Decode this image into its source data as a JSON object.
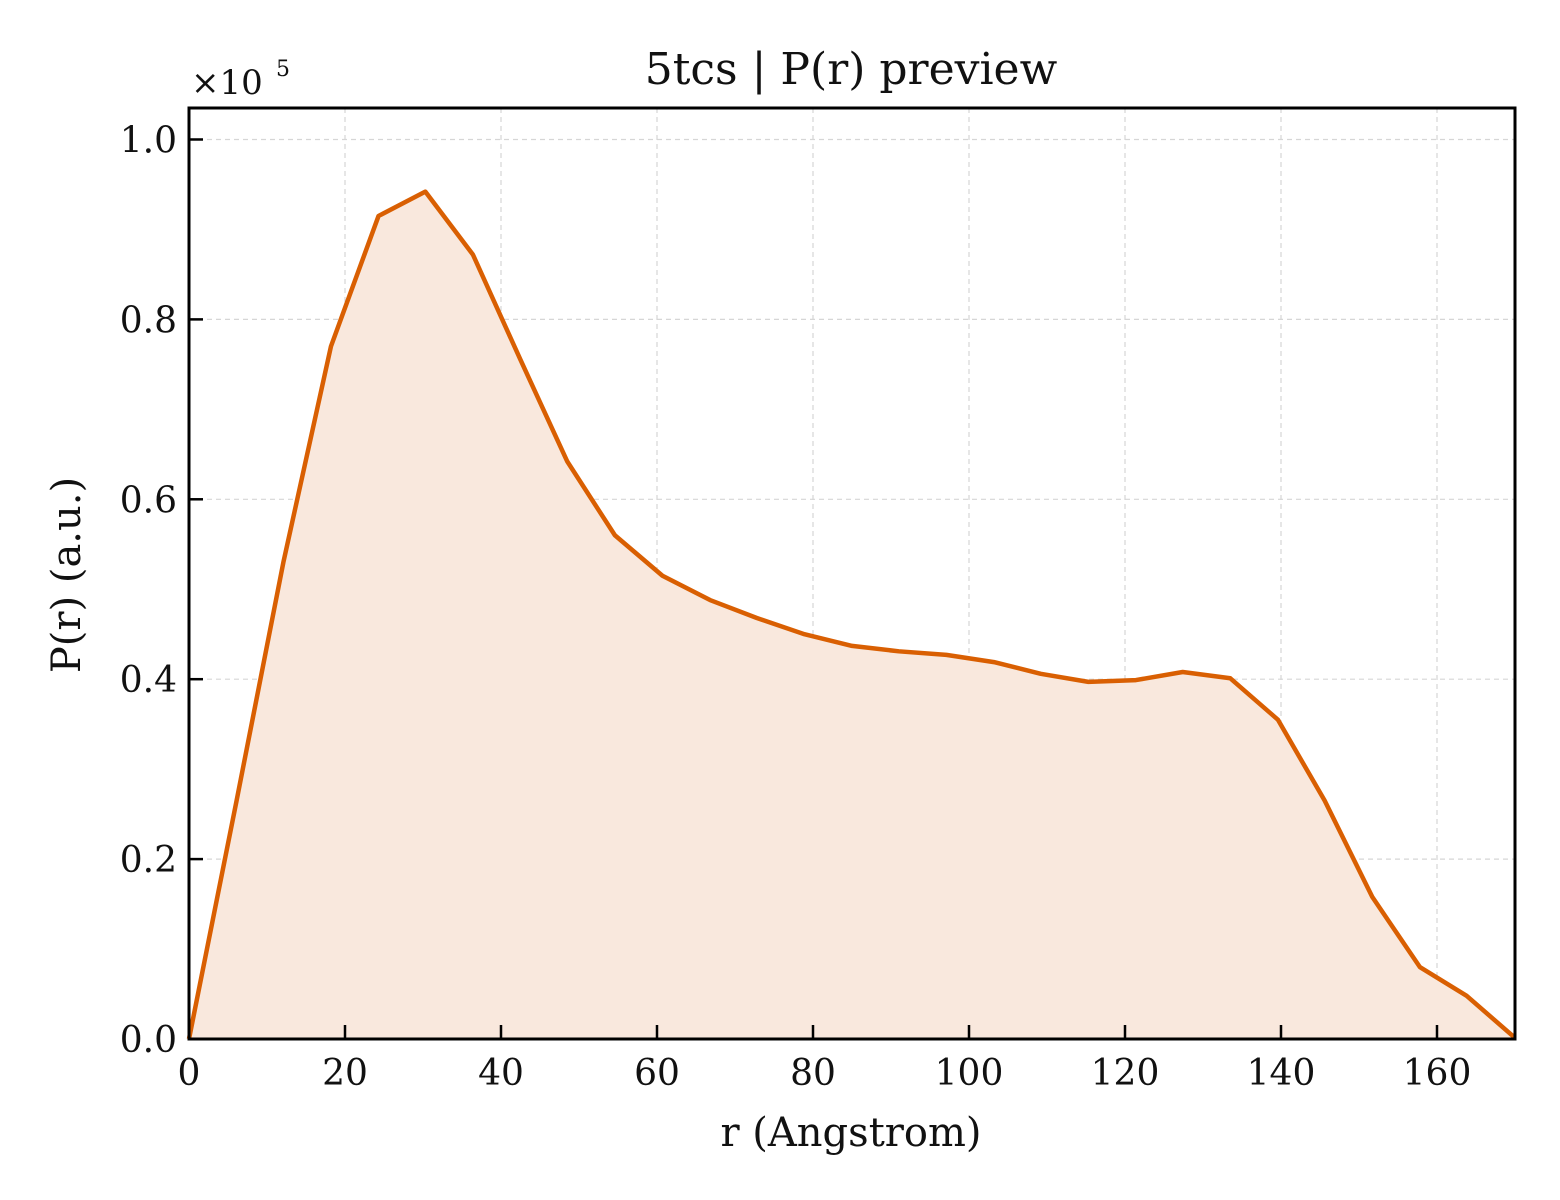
{
  "chart_data": {
    "type": "area",
    "title": "5tcs | P(r) preview",
    "xlabel": "r (Angstrom)",
    "ylabel": "P(r) (a.u.)",
    "y_multiplier": {
      "base": "×10",
      "exponent": "5"
    },
    "xlim": [
      0,
      170
    ],
    "ylim": [
      0,
      1.035
    ],
    "x_ticks": [
      0,
      20,
      40,
      60,
      80,
      100,
      120,
      140,
      160
    ],
    "y_ticks": [
      0.0,
      0.2,
      0.4,
      0.6,
      0.8,
      1.0
    ],
    "x_tick_labels": [
      "0",
      "20",
      "40",
      "60",
      "80",
      "100",
      "120",
      "140",
      "160"
    ],
    "y_tick_labels": [
      "0.0",
      "0.2",
      "0.4",
      "0.6",
      "0.8",
      "1.0"
    ],
    "grid": true,
    "line_color": "#d95f02",
    "fill_color": "#f9e8dd",
    "series": [
      {
        "x": [
          0,
          6.1,
          12.1,
          18.2,
          24.3,
          30.3,
          36.4,
          42.5,
          48.5,
          54.6,
          60.7,
          66.8,
          72.8,
          78.9,
          85.0,
          91.0,
          97.1,
          103.2,
          109.2,
          115.3,
          121.4,
          127.4,
          133.5,
          139.6,
          145.6,
          151.7,
          157.8,
          163.8,
          169.9
        ],
        "y": [
          0.0,
          0.265,
          0.53,
          0.77,
          0.915,
          0.942,
          0.872,
          0.755,
          0.642,
          0.56,
          0.515,
          0.488,
          0.468,
          0.45,
          0.437,
          0.431,
          0.427,
          0.419,
          0.406,
          0.397,
          0.399,
          0.408,
          0.401,
          0.355,
          0.265,
          0.158,
          0.08,
          0.048,
          0.002
        ]
      }
    ]
  }
}
